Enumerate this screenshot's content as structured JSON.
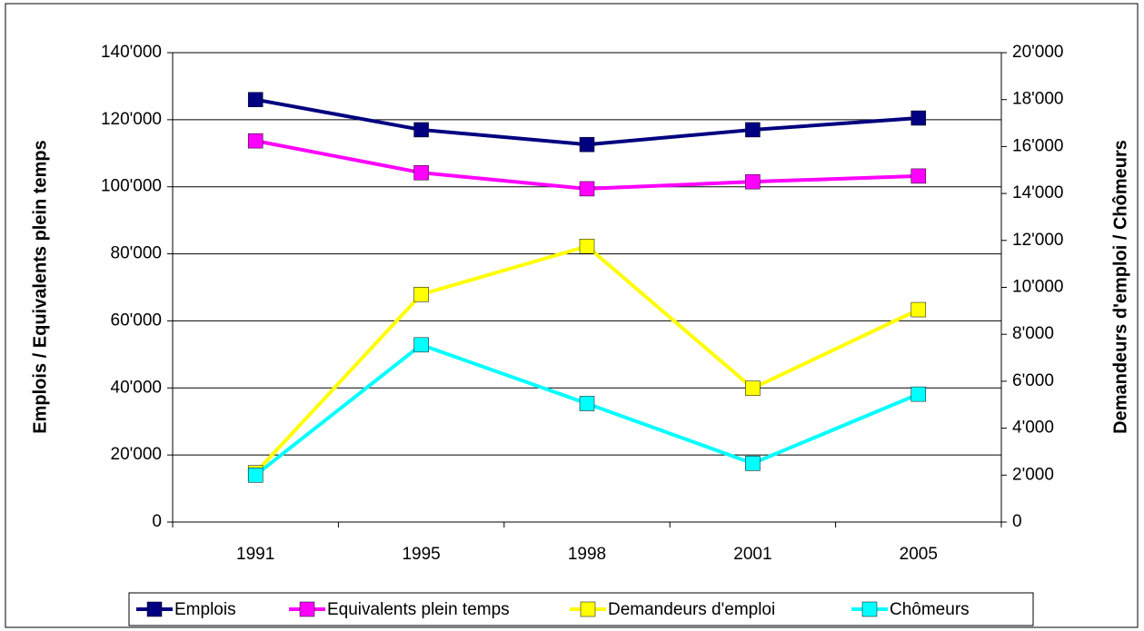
{
  "chart_data": {
    "type": "line",
    "ylabel": "Emplois / Equivalents plein temps",
    "y2label": "Demandeurs d'emploi / Chômeurs",
    "categories": [
      "1991",
      "1995",
      "1998",
      "2001",
      "2005"
    ],
    "series": [
      {
        "name": "Emplois",
        "color": "#000080",
        "values": [
          126000,
          117000,
          112600,
          117000,
          120500
        ]
      },
      {
        "name": "Equivalents plein temps",
        "color": "#ff00ff",
        "values": [
          113700,
          104200,
          99400,
          101500,
          103200
        ]
      },
      {
        "name": "Demandeurs d'emploi",
        "color": "#ffff00",
        "axis": "y2",
        "values": [
          2100,
          9700,
          11750,
          5700,
          9050
        ]
      },
      {
        "name": "Chômeurs",
        "color": "#00ffff",
        "axis": "y2",
        "values": [
          2000,
          7550,
          5050,
          2500,
          5450
        ]
      }
    ],
    "ylim": [
      0,
      140000
    ],
    "yticks": [
      0,
      {
        "value": 20000,
        "label": "20'000"
      },
      {
        "value": 40000,
        "label": "40'000"
      },
      {
        "value": 60000,
        "label": "60'000"
      },
      {
        "value": 80000,
        "label": "80'000"
      },
      {
        "value": 100000,
        "label": "100'000"
      },
      {
        "value": 120000,
        "label": "120'000"
      },
      {
        "value": 140000,
        "label": "140'000"
      }
    ],
    "y2lim": [
      0,
      20000
    ],
    "y2ticks": [
      0,
      {
        "value": 2000,
        "label": "2'000"
      },
      {
        "value": 4000,
        "label": "4'000"
      },
      {
        "value": 6000,
        "label": "6'000"
      },
      {
        "value": 8000,
        "label": "8'000"
      },
      {
        "value": 10000,
        "label": "10'000"
      },
      {
        "value": 12000,
        "label": "12'000"
      },
      {
        "value": 14000,
        "label": "14'000"
      },
      {
        "value": 16000,
        "label": "16'000"
      },
      {
        "value": 18000,
        "label": "18'000"
      },
      {
        "value": 20000,
        "label": "20'000"
      }
    ],
    "grid": true,
    "legend": "bottom"
  }
}
